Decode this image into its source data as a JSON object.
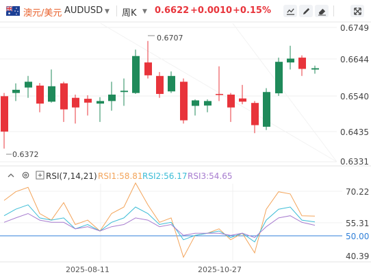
{
  "header": {
    "symbol_name": "澳元/美元",
    "symbol_code": "AUDUSD",
    "period": "周K",
    "price": "0.6622",
    "change": "+0.0010",
    "change_pct": "+0.15%"
  },
  "toolbar": {
    "icons": [
      "line-chart-icon",
      "draw-pen-icon",
      "eraser-icon",
      "fullscreen-icon"
    ]
  },
  "main_chart": {
    "y_ticks": [
      "0.6749",
      "0.6644",
      "0.6540",
      "0.6435",
      "0.6331"
    ],
    "max_label": "0.6707",
    "min_label": "0.6372",
    "up_color": "#e8343b",
    "down_color": "#1f8a5a"
  },
  "rsi": {
    "indicator_label": "RSI(7,14,21)",
    "rsi1_label": "RSI1:58.81",
    "rsi2_label": "RSI2:56.17",
    "rsi3_label": "RSI3:54.65",
    "rsi1_color": "#f3a45a",
    "rsi2_color": "#3bbcd6",
    "rsi3_color": "#a77ccf",
    "y_ticks": [
      "70.22",
      "55.31",
      "50.00",
      "40.39"
    ]
  },
  "x_axis": {
    "labels": [
      "2025-08-11",
      "2025-10-27"
    ]
  }
}
